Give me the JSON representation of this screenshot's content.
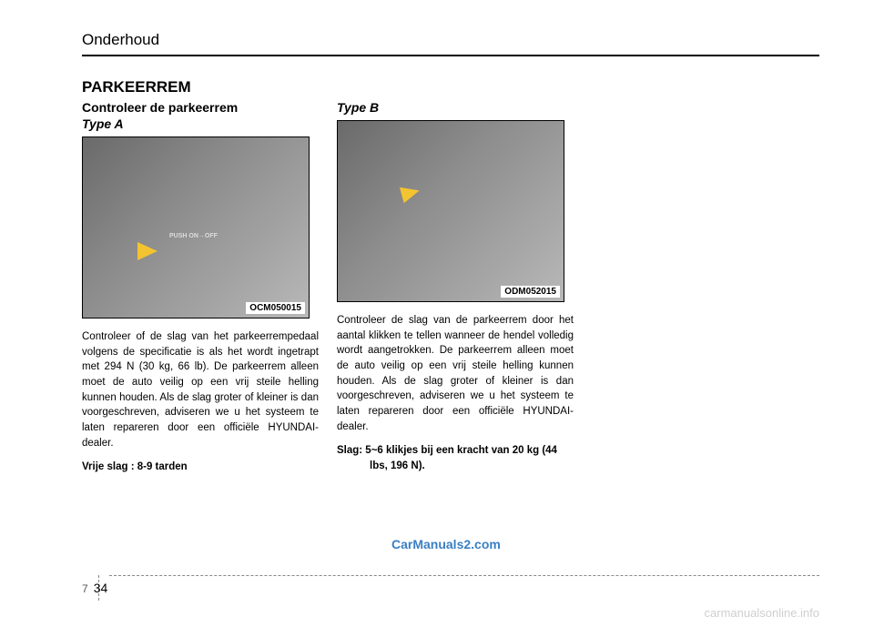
{
  "header": {
    "title": "Onderhoud"
  },
  "section_title": "PARKEERREM",
  "colA": {
    "subtitle": "Controleer de parkeerrem",
    "type_label": "Type A",
    "figure": {
      "code": "OCM050015",
      "push_text": "PUSH\nON→OFF",
      "bg_gradient": [
        "#6a6a6a",
        "#8c8c8c",
        "#b8b8b8"
      ],
      "arrow_color": "#f4c430"
    },
    "body": "Controleer of de slag van het parkeerrempedaal volgens de specificatie is als het wordt ingetrapt met 294 N (30 kg, 66 lb). De parkeerrem alleen moet de auto veilig op een vrij steile helling kunnen houden. Als de slag groter of kleiner is dan voorgeschreven, adviseren we u het systeem te laten repareren door een officiële HYUNDAI-dealer.",
    "bold": "Vrije slag : 8-9 tarden"
  },
  "colB": {
    "type_label": "Type B",
    "figure": {
      "code": "ODM052015",
      "bg_gradient": [
        "#6a6a6a",
        "#8c8c8c",
        "#b8b8b8"
      ],
      "arrow_color": "#f4c430"
    },
    "body": "Controleer de slag van de parkeerrem door het aantal klikken te tellen wanneer de hendel volledig wordt aangetrokken. De parkeerrem alleen moet de auto veilig op een vrij steile helling kunnen houden. Als de slag groter of kleiner is dan voorgeschreven, adviseren we u het systeem te laten repareren door een officiële HYUNDAI-dealer.",
    "bold": "Slag: 5~6 klikjes bij een kracht van 20 kg (44 lbs, 196 N)."
  },
  "watermark": "CarManuals2.com",
  "page": {
    "chapter": "7",
    "number": "34"
  },
  "bottom_mark": "carmanualsonline.info"
}
